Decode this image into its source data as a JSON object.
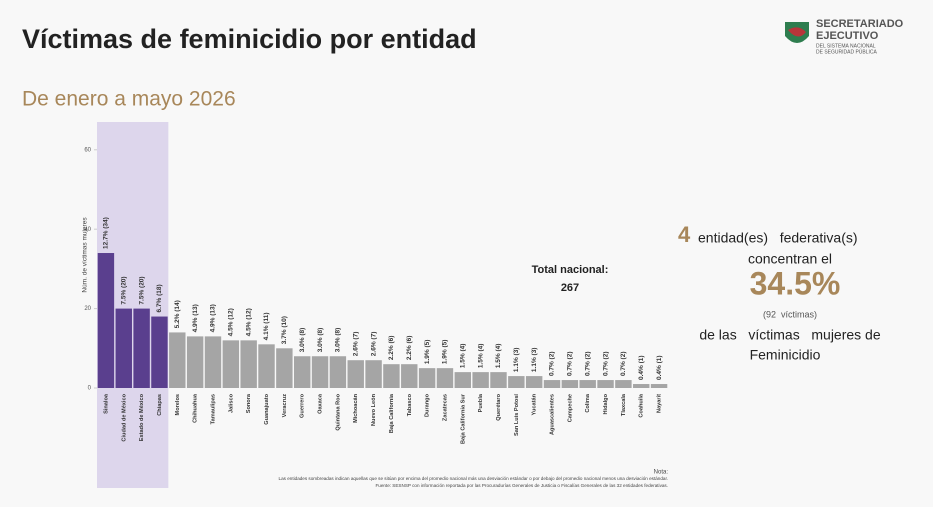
{
  "chart_data": {
    "type": "bar",
    "title": "Víctimas de feminicidio por entidad",
    "subtitle": "De enero a mayo 2026",
    "y_label": "Núm. de víctimas mujeres",
    "categories": [
      "Sinaloa",
      "Ciudad de México",
      "Estado de México",
      "Chiapas",
      "Morelos",
      "Chihuahua",
      "Tamaulipas",
      "Jalisco",
      "Sonora",
      "Guanajuato",
      "Veracruz",
      "Guerrero",
      "Oaxaca",
      "Quintana Roo",
      "Michoacán",
      "Nuevo León",
      "Baja California",
      "Tabasco",
      "Durango",
      "Zacatecas",
      "Baja California Sur",
      "Puebla",
      "Querétaro",
      "San Luis Potosí",
      "Yucatán",
      "Aguascalientes",
      "Campeche",
      "Colima",
      "Hidalgo",
      "Tlaxcala",
      "Coahuila",
      "Nayarit"
    ],
    "values": [
      34,
      20,
      20,
      18,
      14,
      13,
      13,
      12,
      12,
      11,
      10,
      8,
      8,
      8,
      7,
      7,
      6,
      6,
      5,
      5,
      4,
      4,
      4,
      3,
      3,
      2,
      2,
      2,
      2,
      2,
      1,
      1
    ],
    "value_labels": [
      "12.7% (34)",
      "7.5% (20)",
      "7.5% (20)",
      "6.7% (18)",
      "5.2% (14)",
      "4.9% (13)",
      "4.9% (13)",
      "4.5% (12)",
      "4.5% (12)",
      "4.1% (11)",
      "3.7% (10)",
      "3.0% (8)",
      "3.0% (8)",
      "3.0% (8)",
      "2.6% (7)",
      "2.6% (7)",
      "2.2% (6)",
      "2.2% (6)",
      "1.9% (5)",
      "1.9% (5)",
      "1.5% (4)",
      "1.5% (4)",
      "1.5% (4)",
      "1.1% (3)",
      "1.1% (3)",
      "0.7% (2)",
      "0.7% (2)",
      "0.7% (2)",
      "0.7% (2)",
      "0.7% (2)",
      "0.4% (1)",
      "0.4% (1)"
    ],
    "colors": [
      "#5a3f8e",
      "#5a3f8e",
      "#5a3f8e",
      "#5a3f8e",
      "#a5a5a5",
      "#a5a5a5",
      "#a5a5a5",
      "#a5a5a5",
      "#a5a5a5",
      "#a5a5a5",
      "#a5a5a5",
      "#a5a5a5",
      "#a5a5a5",
      "#a5a5a5",
      "#a5a5a5",
      "#a5a5a5",
      "#a5a5a5",
      "#a5a5a5",
      "#a5a5a5",
      "#a5a5a5",
      "#a5a5a5",
      "#a5a5a5",
      "#a5a5a5",
      "#a5a5a5",
      "#a5a5a5",
      "#a5a5a5",
      "#a5a5a5",
      "#a5a5a5",
      "#a5a5a5",
      "#a5a5a5",
      "#a5a5a5",
      "#a5a5a5"
    ],
    "ylim": [
      0,
      67
    ],
    "yticks": [
      0,
      20,
      40,
      60
    ],
    "total_label": "Total nacional:",
    "total": 267,
    "summary": {
      "count": 4,
      "text1": "entidad(es)   federativa(s)",
      "text2": "concentran el",
      "share": "34.5%",
      "victims": "(92  víctimas)",
      "text3": "de las   víctimas   mujeres de",
      "text4": "Feminicidio"
    },
    "notes": [
      "Nota:",
      "Las entidades sombreadas indican aquellas que se sitúan por encima del promedio nacional más una desviación estándar o por debajo del promedio nacional menos una desviación estándar.",
      "Fuente: SESNSP con información reportada por las Procuradurías Generales de Justicia o Fiscalías Generales de las 32 entidades federativas."
    ],
    "logo": [
      "SECRETARIADO",
      "EJECUTIVO",
      "DEL SISTEMA NACIONAL",
      "DE SEGURIDAD PÚBLICA"
    ]
  }
}
